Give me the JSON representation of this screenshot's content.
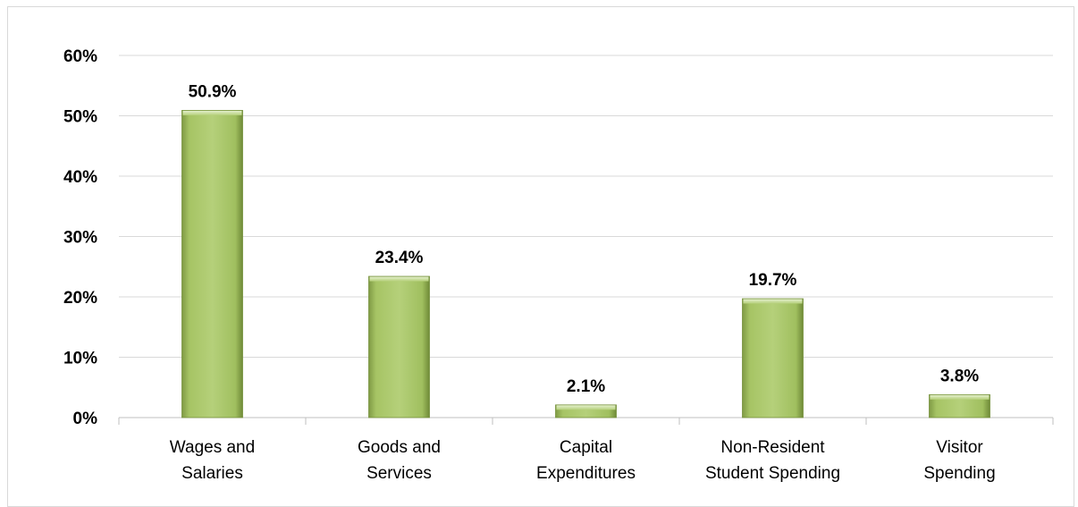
{
  "chart_data": {
    "type": "bar",
    "categories": [
      [
        "Wages and",
        "Salaries"
      ],
      [
        "Goods and",
        "Services"
      ],
      [
        "Capital",
        "Expenditures"
      ],
      [
        "Non-Resident",
        "Student Spending"
      ],
      [
        "Visitor",
        "Spending"
      ]
    ],
    "values": [
      50.9,
      23.4,
      2.1,
      19.7,
      3.8
    ],
    "data_labels": [
      "50.9%",
      "23.4%",
      "2.1%",
      "19.7%",
      "3.8%"
    ],
    "y_ticks": [
      "0%",
      "10%",
      "20%",
      "30%",
      "40%",
      "50%",
      "60%"
    ],
    "ylim": [
      0,
      60
    ],
    "title": "",
    "xlabel": "",
    "ylabel": "",
    "grid": true,
    "legend": "none"
  },
  "colors": {
    "bar_fill": "#9bbb59",
    "bar_light": "#c3d89a",
    "bar_dark": "#76923c",
    "gridline": "#d9d9d9",
    "axis": "#bfbfbf"
  }
}
